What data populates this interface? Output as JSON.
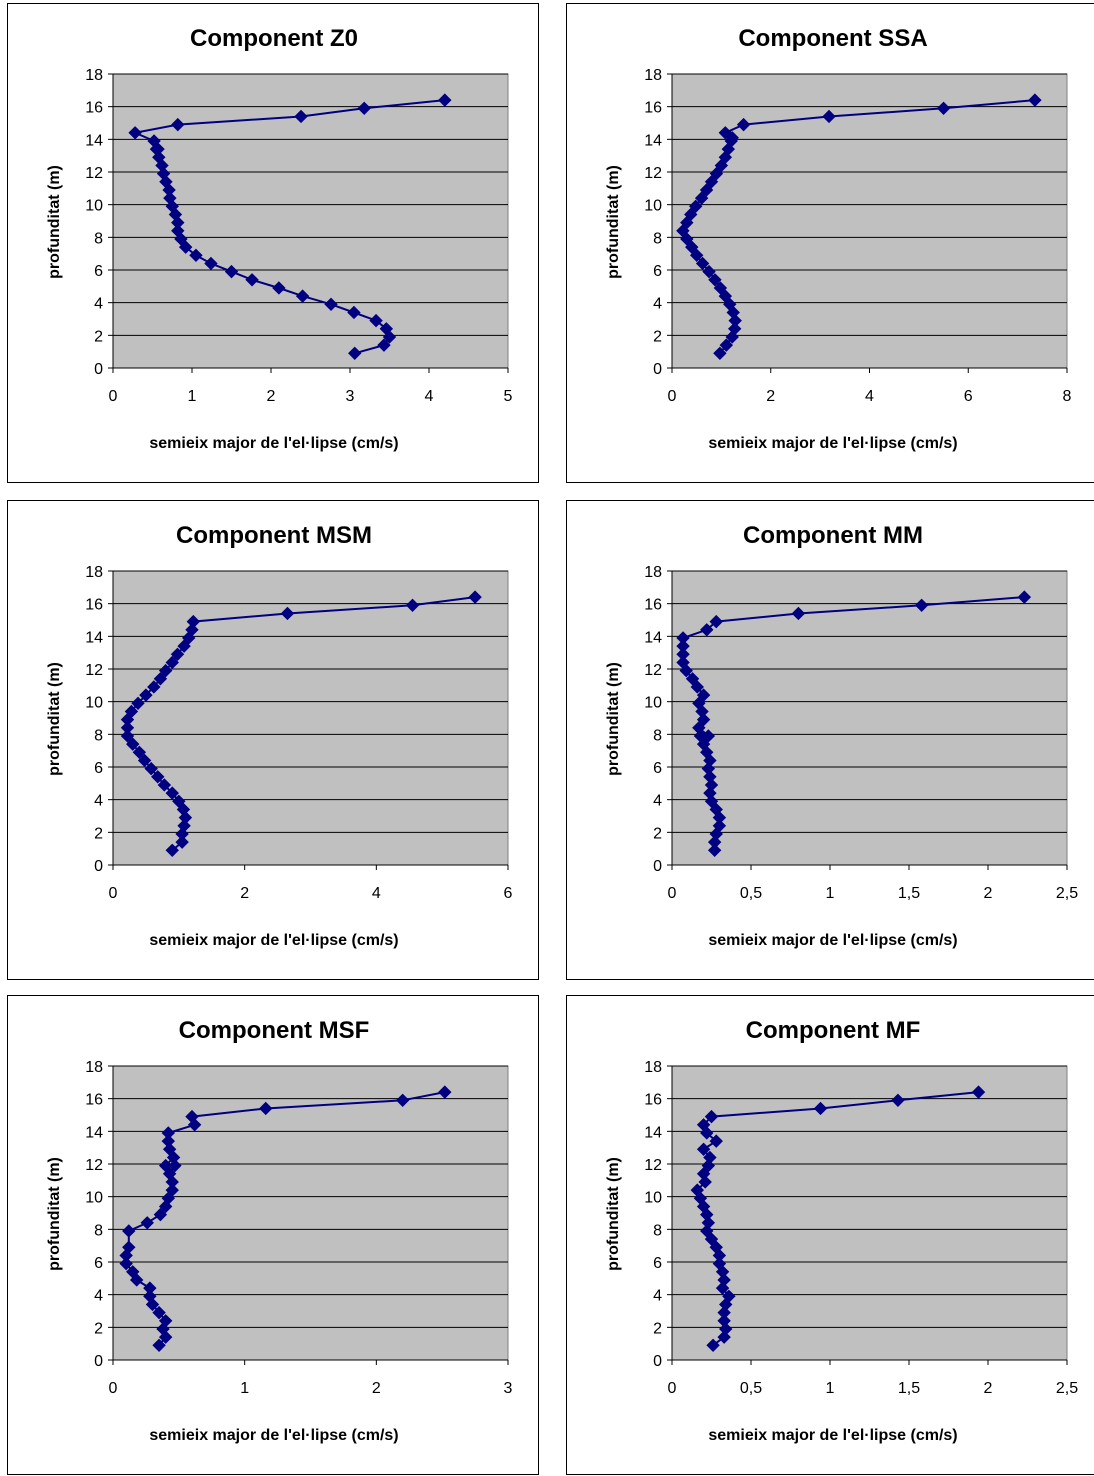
{
  "colors": {
    "plot_bg": "#c0c0c0",
    "series": "#000080",
    "grid": "#000000"
  },
  "chart_data": [
    {
      "type": "line",
      "marker": "diamond",
      "title": "Component Z0",
      "xlabel": "semieix major de l'el·lipse (cm/s)",
      "ylabel": "profunditat (m)",
      "xlim": [
        0,
        5
      ],
      "ylim": [
        0,
        18
      ],
      "xticks": [
        "0",
        "1",
        "2",
        "3",
        "4",
        "5"
      ],
      "yticks": [
        "0",
        "2",
        "4",
        "6",
        "8",
        "10",
        "12",
        "14",
        "16",
        "18"
      ],
      "grid": "horizontal",
      "series": [
        {
          "x": [
            3.06,
            3.43,
            3.5,
            3.46,
            3.33,
            3.05,
            2.76,
            2.4,
            2.1,
            1.76,
            1.5,
            1.24,
            1.05,
            0.92,
            0.86,
            0.82,
            0.82,
            0.79,
            0.75,
            0.72,
            0.71,
            0.67,
            0.64,
            0.62,
            0.58,
            0.55,
            0.57,
            0.52,
            0.28,
            0.82,
            2.38,
            3.18,
            4.2
          ],
          "y": [
            0.9,
            1.4,
            1.9,
            2.4,
            2.9,
            3.4,
            3.9,
            4.4,
            4.9,
            5.4,
            5.9,
            6.4,
            6.9,
            7.4,
            7.9,
            8.4,
            8.9,
            9.4,
            9.9,
            10.4,
            10.9,
            11.4,
            11.9,
            12.4,
            12.9,
            13.4,
            13.4,
            13.9,
            14.4,
            14.9,
            15.4,
            15.9,
            16.4
          ]
        }
      ]
    },
    {
      "type": "line",
      "marker": "diamond",
      "title": "Component SSA",
      "xlabel": "semieix major de l'el·lipse (cm/s)",
      "ylabel": "profunditat (m)",
      "xlim": [
        0,
        8
      ],
      "ylim": [
        0,
        18
      ],
      "xticks": [
        "0",
        "2",
        "4",
        "6",
        "8"
      ],
      "yticks": [
        "0",
        "2",
        "4",
        "6",
        "8",
        "10",
        "12",
        "14",
        "16",
        "18"
      ],
      "grid": "horizontal",
      "series": [
        {
          "x": [
            0.97,
            1.1,
            1.22,
            1.27,
            1.28,
            1.24,
            1.17,
            1.08,
            0.98,
            0.87,
            0.75,
            0.62,
            0.5,
            0.4,
            0.3,
            0.22,
            0.3,
            0.38,
            0.48,
            0.6,
            0.7,
            0.8,
            0.9,
            1.0,
            1.08,
            1.14,
            1.2,
            1.22,
            1.08,
            1.45,
            3.18,
            5.5,
            7.35
          ],
          "y": [
            0.9,
            1.4,
            1.9,
            2.4,
            2.9,
            3.4,
            3.9,
            4.4,
            4.9,
            5.4,
            5.9,
            6.4,
            6.9,
            7.4,
            7.9,
            8.4,
            8.9,
            9.4,
            9.9,
            10.4,
            10.9,
            11.4,
            11.9,
            12.4,
            12.9,
            13.4,
            13.9,
            14.1,
            14.4,
            14.9,
            15.4,
            15.9,
            16.4
          ]
        }
      ]
    },
    {
      "type": "line",
      "marker": "diamond",
      "title": "Component MSM",
      "xlabel": "semieix major de l'el·lipse (cm/s)",
      "ylabel": "profunditat (m)",
      "xlim": [
        0,
        6
      ],
      "ylim": [
        0,
        18
      ],
      "xticks": [
        "0",
        "2",
        "4",
        "6"
      ],
      "yticks": [
        "0",
        "2",
        "4",
        "6",
        "8",
        "10",
        "12",
        "14",
        "16",
        "18"
      ],
      "grid": "horizontal",
      "series": [
        {
          "x": [
            0.9,
            1.05,
            1.05,
            1.08,
            1.1,
            1.07,
            1.0,
            0.9,
            0.78,
            0.68,
            0.58,
            0.48,
            0.4,
            0.3,
            0.22,
            0.22,
            0.22,
            0.28,
            0.38,
            0.5,
            0.62,
            0.72,
            0.8,
            0.9,
            0.98,
            1.08,
            1.15,
            1.2,
            1.22,
            2.65,
            4.55,
            5.5
          ],
          "y": [
            0.9,
            1.4,
            1.9,
            2.4,
            2.9,
            3.4,
            3.9,
            4.4,
            4.9,
            5.4,
            5.9,
            6.4,
            6.9,
            7.4,
            7.9,
            8.4,
            8.9,
            9.4,
            9.9,
            10.4,
            10.9,
            11.4,
            11.9,
            12.4,
            12.9,
            13.4,
            13.9,
            14.4,
            14.9,
            15.4,
            15.9,
            16.4
          ]
        }
      ]
    },
    {
      "type": "line",
      "marker": "diamond",
      "title": "Component MM",
      "xlabel": "semieix major de l'el·lipse (cm/s)",
      "ylabel": "profunditat (m)",
      "xlim": [
        0,
        2.5
      ],
      "ylim": [
        0,
        18
      ],
      "xticks": [
        "0",
        "0,5",
        "1",
        "1,5",
        "2",
        "2,5"
      ],
      "yticks": [
        "0",
        "2",
        "4",
        "6",
        "8",
        "10",
        "12",
        "14",
        "16",
        "18"
      ],
      "grid": "horizontal",
      "series": [
        {
          "x": [
            0.27,
            0.27,
            0.28,
            0.3,
            0.3,
            0.28,
            0.25,
            0.24,
            0.25,
            0.24,
            0.23,
            0.24,
            0.22,
            0.2,
            0.18,
            0.23,
            0.17,
            0.2,
            0.19,
            0.17,
            0.2,
            0.16,
            0.13,
            0.09,
            0.07,
            0.07,
            0.07,
            0.07,
            0.22,
            0.28,
            0.8,
            1.58,
            2.23
          ],
          "y": [
            0.9,
            1.4,
            1.9,
            2.4,
            2.9,
            3.4,
            3.9,
            4.4,
            4.9,
            5.4,
            5.9,
            6.4,
            6.9,
            7.4,
            7.9,
            7.9,
            8.4,
            8.9,
            9.4,
            9.9,
            10.4,
            10.9,
            11.4,
            11.9,
            12.4,
            12.9,
            13.4,
            13.9,
            14.4,
            14.9,
            15.4,
            15.9,
            16.4
          ]
        }
      ]
    },
    {
      "type": "line",
      "marker": "diamond",
      "title": "Component MSF",
      "xlabel": "semieix major de l'el·lipse (cm/s)",
      "ylabel": "profunditat (m)",
      "xlim": [
        0,
        3
      ],
      "ylim": [
        0,
        18
      ],
      "xticks": [
        "0",
        "1",
        "2",
        "3"
      ],
      "yticks": [
        "0",
        "2",
        "4",
        "6",
        "8",
        "10",
        "12",
        "14",
        "16",
        "18"
      ],
      "grid": "horizontal",
      "series": [
        {
          "x": [
            0.35,
            0.4,
            0.38,
            0.4,
            0.35,
            0.3,
            0.28,
            0.28,
            0.18,
            0.15,
            0.1,
            0.1,
            0.12,
            0.12,
            0.26,
            0.36,
            0.4,
            0.42,
            0.45,
            0.45,
            0.43,
            0.47,
            0.4,
            0.46,
            0.43,
            0.42,
            0.42,
            0.62,
            0.6,
            1.16,
            2.2,
            2.52
          ],
          "y": [
            0.9,
            1.4,
            1.9,
            2.4,
            2.9,
            3.4,
            3.9,
            4.4,
            4.9,
            5.4,
            5.9,
            6.4,
            6.9,
            7.9,
            8.4,
            8.9,
            9.4,
            9.9,
            10.4,
            10.9,
            11.4,
            11.9,
            11.9,
            12.4,
            12.9,
            13.4,
            13.9,
            14.4,
            14.9,
            15.4,
            15.9,
            16.4
          ]
        }
      ]
    },
    {
      "type": "line",
      "marker": "diamond",
      "title": "Component MF",
      "xlabel": "semieix major de l'el·lipse (cm/s)",
      "ylabel": "profunditat (m)",
      "xlim": [
        0,
        2.5
      ],
      "ylim": [
        0,
        18
      ],
      "xticks": [
        "0",
        "0,5",
        "1",
        "1,5",
        "2",
        "2,5"
      ],
      "yticks": [
        "0",
        "2",
        "4",
        "6",
        "8",
        "10",
        "12",
        "14",
        "16",
        "18"
      ],
      "grid": "horizontal",
      "series": [
        {
          "x": [
            0.26,
            0.33,
            0.34,
            0.33,
            0.33,
            0.34,
            0.36,
            0.32,
            0.33,
            0.32,
            0.3,
            0.3,
            0.28,
            0.25,
            0.22,
            0.23,
            0.22,
            0.2,
            0.18,
            0.16,
            0.21,
            0.2,
            0.23,
            0.24,
            0.2,
            0.28,
            0.22,
            0.2,
            0.25,
            0.94,
            1.43,
            1.94
          ],
          "y": [
            0.9,
            1.4,
            1.9,
            2.4,
            2.9,
            3.4,
            3.9,
            4.4,
            4.9,
            5.4,
            5.9,
            6.4,
            6.9,
            7.4,
            7.9,
            8.4,
            8.9,
            9.4,
            9.9,
            10.4,
            10.9,
            11.4,
            11.9,
            12.4,
            12.9,
            13.4,
            13.9,
            14.4,
            14.9,
            15.4,
            15.9,
            16.4
          ]
        }
      ]
    }
  ]
}
